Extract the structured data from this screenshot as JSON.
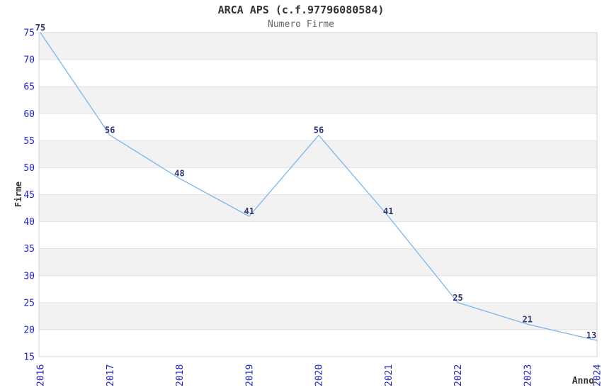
{
  "chart_data": {
    "type": "line",
    "title": "ARCA APS (c.f.97796080584)",
    "subtitle": "Numero Firme",
    "xlabel": "Anno",
    "ylabel": "Firme",
    "categories": [
      "2016",
      "2017",
      "2018",
      "2019",
      "2020",
      "2021",
      "2022",
      "2023",
      "2024"
    ],
    "values": [
      75,
      56,
      48,
      41,
      56,
      41,
      25,
      21,
      13
    ],
    "plotted_values": [
      75,
      56,
      48,
      41,
      56,
      41,
      25,
      21,
      18
    ],
    "ylim": [
      15,
      75
    ],
    "ytick_step": 5,
    "yticks": [
      15,
      20,
      25,
      30,
      35,
      40,
      45,
      50,
      55,
      60,
      65,
      70,
      75
    ],
    "grid": true,
    "alternating_row_bands": true,
    "legend": "none",
    "data_labels": true,
    "markers": false,
    "x_label_rotation": -90,
    "colors": {
      "line": "#7cb5ec",
      "band": "#f2f2f2",
      "grid": "#e3e3e3",
      "plot_border": "#d4d4d4",
      "tick_label": "#2222cc",
      "data_label": "#333377",
      "title": "#333333",
      "subtitle": "#666666",
      "axis_title": "#333333",
      "background": "#ffffff"
    }
  }
}
